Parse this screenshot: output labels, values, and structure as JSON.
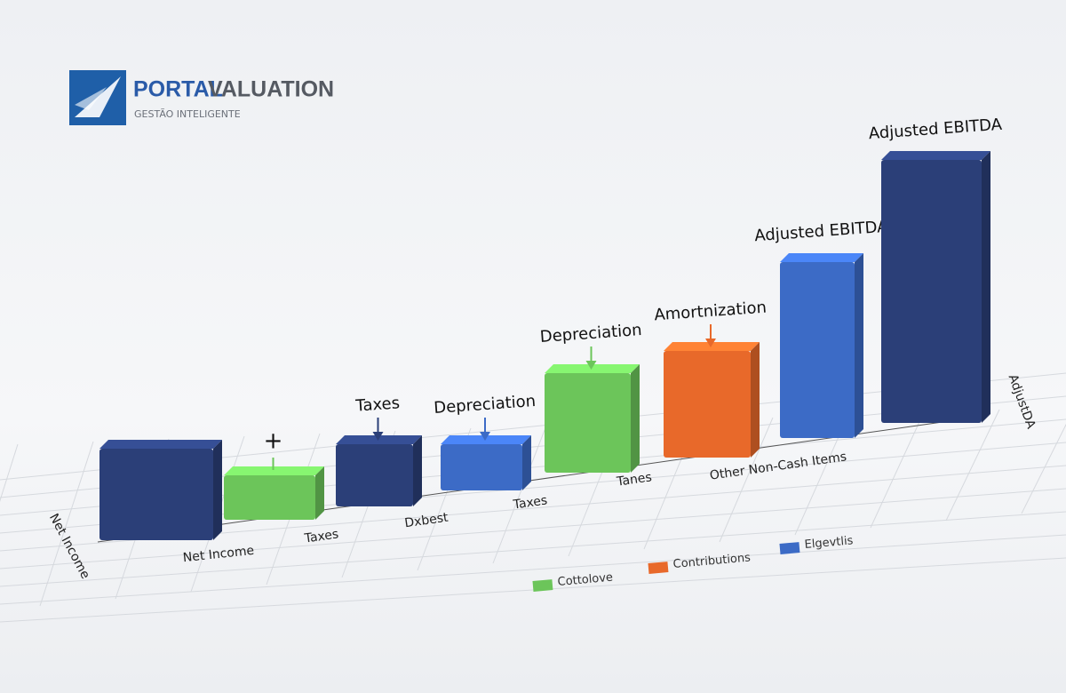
{
  "logo": {
    "name_primary": "PORTAL",
    "name_secondary": "VALUATION",
    "tagline": "GESTÃO INTELIGENTE"
  },
  "chart_data": {
    "type": "bar",
    "values": [
      103,
      50,
      70,
      52,
      112,
      120,
      198,
      296
    ],
    "colors": [
      "#2b3f78",
      "#6cc55a",
      "#2b3f78",
      "#3c6bc6",
      "#6cc55a",
      "#e8692a",
      "#3c6bc6",
      "#2b3f78"
    ],
    "annotations": [
      null,
      "+",
      "Taxes",
      "Depreciation",
      "Depreciation",
      "Amortnization",
      "Adjusted EBITDA",
      "Adjusted EBITDA"
    ],
    "floor_labels": [
      "Net Income",
      "Net Income",
      "Taxes",
      "Dxbest",
      "Taxes",
      "Tanes",
      "Other Non-Cash Items",
      "AdjustDA"
    ],
    "series": [
      {
        "name": "Cottolove",
        "color": "#6cc55a"
      },
      {
        "name": "Contributions",
        "color": "#e8692a"
      },
      {
        "name": "Elgevtlis",
        "color": "#3c6bc6"
      }
    ]
  }
}
